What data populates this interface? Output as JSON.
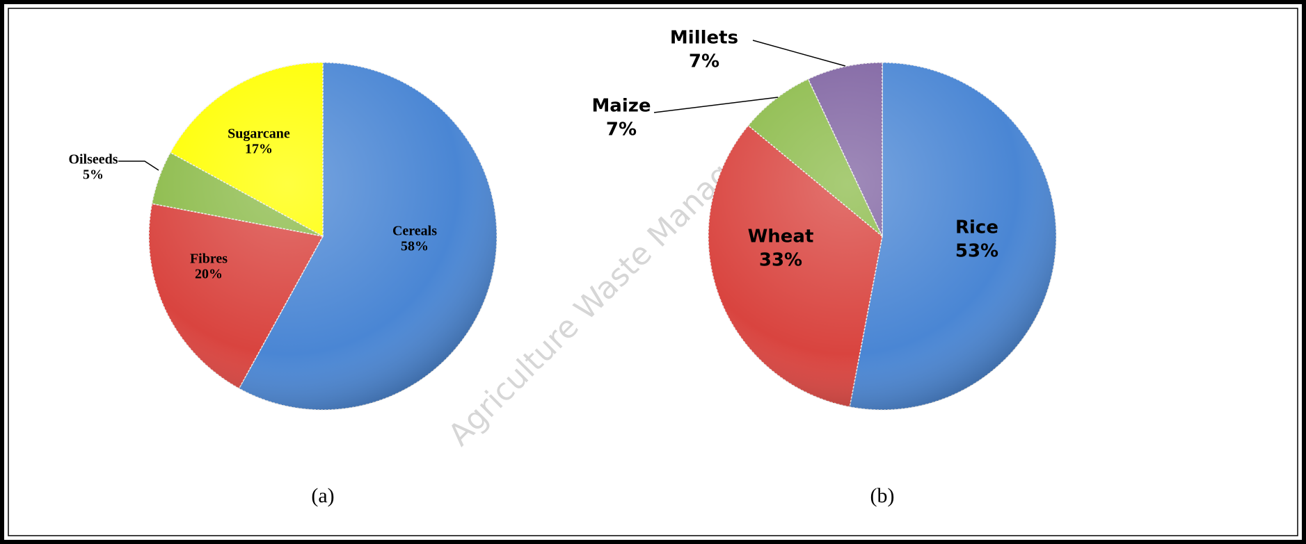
{
  "chart_data": [
    {
      "type": "pie",
      "caption": "(a)",
      "categories": [
        "Cereals",
        "Fibres",
        "Oilseeds",
        "Sugarcane"
      ],
      "values": [
        58,
        20,
        5,
        17
      ],
      "value_labels": [
        "58%",
        "20%",
        "5%",
        "17%"
      ],
      "colors": [
        "#4a86d4",
        "#d9443f",
        "#8cbb4a",
        "#ffff00"
      ]
    },
    {
      "type": "pie",
      "caption": "(b)",
      "categories": [
        "Rice",
        "Wheat",
        "Maize",
        "Millets"
      ],
      "values": [
        53,
        33,
        7,
        7
      ],
      "value_labels": [
        "53%",
        "33%",
        "7%",
        "7%"
      ],
      "colors": [
        "#4a86d4",
        "#d9443f",
        "#8cbb4a",
        "#8064a2"
      ]
    }
  ],
  "watermark": "Agriculture Waste Management"
}
